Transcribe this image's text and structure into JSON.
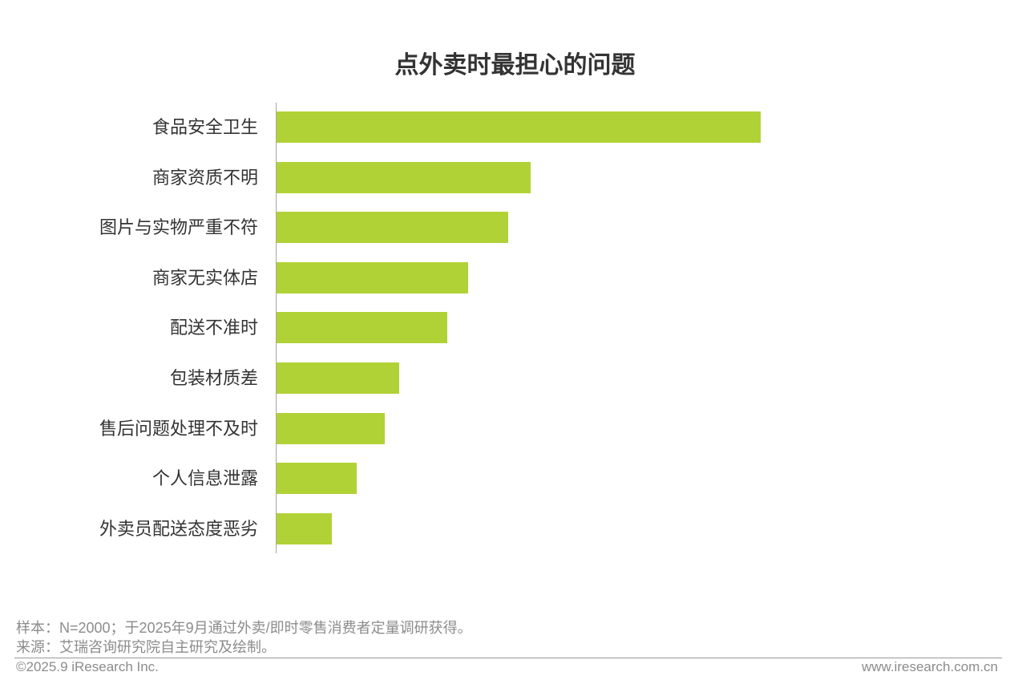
{
  "chart_data": {
    "type": "bar",
    "orientation": "horizontal",
    "title": "点外卖时最担心的问题",
    "categories": [
      "食品安全卫生",
      "商家资质不明",
      "图片与实物严重不符",
      "商家无实体店",
      "配送不准时",
      "包装材质差",
      "售后问题处理不及时",
      "个人信息泄露",
      "外卖员配送态度恶劣"
    ],
    "values": [
      100,
      52.5,
      47.8,
      39.6,
      35.3,
      25.3,
      22.4,
      16.6,
      11.4
    ],
    "color": "#b1d236",
    "grid": false
  },
  "notes": {
    "sample": "样本：N=2000；于2025年9月通过外卖/即时零售消费者定量调研获得。",
    "source": "来源：艾瑞咨询研究院自主研究及绘制。"
  },
  "footer": {
    "copyright": "©2025.9 iResearch Inc.",
    "website": "www.iresearch.com.cn"
  }
}
